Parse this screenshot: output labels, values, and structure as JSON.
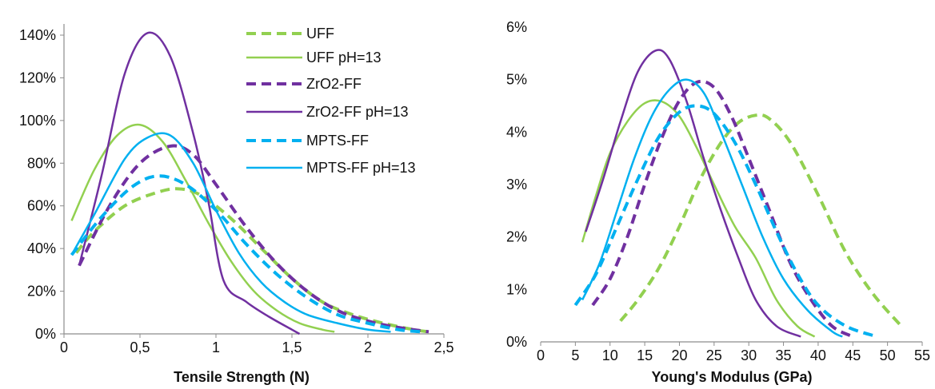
{
  "colors": {
    "green": "#92d050",
    "purple": "#7030a0",
    "blue": "#00b0f0",
    "axis": "#8c8c8c"
  },
  "chart_data": [
    {
      "type": "line",
      "xlabel": "Tensile Strength (N)",
      "ylabel": "",
      "xlim": [
        0,
        2.5
      ],
      "ylim": [
        0,
        1.4
      ],
      "x_ticks": [
        "0",
        "0,5",
        "1",
        "1,5",
        "2",
        "2,5"
      ],
      "y_ticks": [
        "0%",
        "20%",
        "40%",
        "60%",
        "80%",
        "100%",
        "120%",
        "140%"
      ],
      "grid": false,
      "legend_position": "top-right",
      "series": [
        {
          "name": "UFF",
          "color": "green",
          "dashed": true,
          "points": [
            [
              0.08,
              0.38
            ],
            [
              0.2,
              0.48
            ],
            [
              0.4,
              0.6
            ],
            [
              0.6,
              0.66
            ],
            [
              0.75,
              0.68
            ],
            [
              0.9,
              0.65
            ],
            [
              1.1,
              0.54
            ],
            [
              1.3,
              0.4
            ],
            [
              1.5,
              0.26
            ],
            [
              1.7,
              0.15
            ],
            [
              1.9,
              0.09
            ],
            [
              2.1,
              0.05
            ],
            [
              2.3,
              0.02
            ],
            [
              2.4,
              0.01
            ]
          ]
        },
        {
          "name": "UFF pH=13",
          "color": "green",
          "dashed": false,
          "points": [
            [
              0.05,
              0.53
            ],
            [
              0.2,
              0.77
            ],
            [
              0.35,
              0.93
            ],
            [
              0.5,
              0.98
            ],
            [
              0.65,
              0.9
            ],
            [
              0.8,
              0.72
            ],
            [
              0.95,
              0.52
            ],
            [
              1.1,
              0.34
            ],
            [
              1.25,
              0.2
            ],
            [
              1.4,
              0.11
            ],
            [
              1.55,
              0.05
            ],
            [
              1.7,
              0.02
            ],
            [
              1.78,
              0.01
            ]
          ]
        },
        {
          "name": "ZrO2-FF",
          "color": "purple",
          "dashed": true,
          "points": [
            [
              0.1,
              0.32
            ],
            [
              0.3,
              0.6
            ],
            [
              0.5,
              0.8
            ],
            [
              0.7,
              0.88
            ],
            [
              0.85,
              0.84
            ],
            [
              1.0,
              0.7
            ],
            [
              1.2,
              0.5
            ],
            [
              1.4,
              0.33
            ],
            [
              1.6,
              0.2
            ],
            [
              1.8,
              0.11
            ],
            [
              2.0,
              0.06
            ],
            [
              2.2,
              0.03
            ],
            [
              2.4,
              0.01
            ]
          ]
        },
        {
          "name": "ZrO2-FF pH=13",
          "color": "purple",
          "dashed": false,
          "points": [
            [
              0.1,
              0.32
            ],
            [
              0.25,
              0.75
            ],
            [
              0.4,
              1.22
            ],
            [
              0.55,
              1.41
            ],
            [
              0.7,
              1.3
            ],
            [
              0.85,
              0.94
            ],
            [
              0.95,
              0.62
            ],
            [
              1.05,
              0.25
            ],
            [
              1.2,
              0.15
            ],
            [
              1.35,
              0.08
            ],
            [
              1.5,
              0.02
            ],
            [
              1.55,
              0.0
            ]
          ]
        },
        {
          "name": "MPTS-FF",
          "color": "blue",
          "dashed": true,
          "points": [
            [
              0.05,
              0.37
            ],
            [
              0.25,
              0.55
            ],
            [
              0.45,
              0.69
            ],
            [
              0.62,
              0.74
            ],
            [
              0.8,
              0.7
            ],
            [
              1.0,
              0.58
            ],
            [
              1.2,
              0.42
            ],
            [
              1.4,
              0.28
            ],
            [
              1.6,
              0.17
            ],
            [
              1.8,
              0.09
            ],
            [
              2.0,
              0.05
            ],
            [
              2.2,
              0.02
            ],
            [
              2.35,
              0.01
            ]
          ]
        },
        {
          "name": "MPTS-FF pH=13",
          "color": "blue",
          "dashed": false,
          "points": [
            [
              0.05,
              0.37
            ],
            [
              0.2,
              0.56
            ],
            [
              0.4,
              0.82
            ],
            [
              0.55,
              0.92
            ],
            [
              0.7,
              0.93
            ],
            [
              0.85,
              0.8
            ],
            [
              1.0,
              0.58
            ],
            [
              1.15,
              0.38
            ],
            [
              1.3,
              0.24
            ],
            [
              1.45,
              0.15
            ],
            [
              1.6,
              0.09
            ],
            [
              1.8,
              0.05
            ],
            [
              2.0,
              0.02
            ],
            [
              2.15,
              0.01
            ]
          ]
        }
      ]
    },
    {
      "type": "line",
      "xlabel": "Young's Modulus (GPa)",
      "ylabel": "",
      "xlim": [
        0,
        55
      ],
      "ylim": [
        0,
        0.06
      ],
      "x_ticks": [
        "0",
        "5",
        "10",
        "15",
        "20",
        "25",
        "30",
        "35",
        "40",
        "45",
        "50",
        "55"
      ],
      "y_ticks": [
        "0%",
        "1%",
        "2%",
        "3%",
        "4%",
        "5%",
        "6%"
      ],
      "grid": false,
      "legend_position": "none",
      "series": [
        {
          "name": "UFF",
          "color": "green",
          "dashed": true,
          "points": [
            [
              11.5,
              0.004
            ],
            [
              14,
              0.008
            ],
            [
              17,
              0.014
            ],
            [
              20,
              0.022
            ],
            [
              23,
              0.031
            ],
            [
              26,
              0.038
            ],
            [
              28.5,
              0.0418
            ],
            [
              31,
              0.0432
            ],
            [
              33,
              0.0425
            ],
            [
              36,
              0.038
            ],
            [
              40,
              0.028
            ],
            [
              44,
              0.017
            ],
            [
              48,
              0.009
            ],
            [
              52,
              0.003
            ]
          ]
        },
        {
          "name": "UFF pH=13",
          "color": "green",
          "dashed": false,
          "points": [
            [
              6,
              0.019
            ],
            [
              8,
              0.028
            ],
            [
              10,
              0.036
            ],
            [
              12.5,
              0.042
            ],
            [
              15,
              0.0455
            ],
            [
              17.5,
              0.0458
            ],
            [
              20,
              0.043
            ],
            [
              22.5,
              0.037
            ],
            [
              25,
              0.03
            ],
            [
              28,
              0.022
            ],
            [
              31,
              0.016
            ],
            [
              34,
              0.008
            ],
            [
              37,
              0.003
            ],
            [
              39.5,
              0.001
            ]
          ]
        },
        {
          "name": "ZrO2-FF",
          "color": "purple",
          "dashed": true,
          "points": [
            [
              7.5,
              0.007
            ],
            [
              10,
              0.012
            ],
            [
              12.5,
              0.02
            ],
            [
              15,
              0.03
            ],
            [
              17.5,
              0.039
            ],
            [
              20,
              0.046
            ],
            [
              22.5,
              0.0495
            ],
            [
              25,
              0.0485
            ],
            [
              27.5,
              0.043
            ],
            [
              30,
              0.035
            ],
            [
              33,
              0.025
            ],
            [
              36,
              0.015
            ],
            [
              39,
              0.008
            ],
            [
              42,
              0.003
            ],
            [
              45,
              0.001
            ]
          ]
        },
        {
          "name": "ZrO2-FF pH=13",
          "color": "purple",
          "dashed": false,
          "points": [
            [
              6.5,
              0.021
            ],
            [
              9,
              0.031
            ],
            [
              11.5,
              0.042
            ],
            [
              14,
              0.0515
            ],
            [
              16.5,
              0.0555
            ],
            [
              18.5,
              0.054
            ],
            [
              21,
              0.046
            ],
            [
              23.5,
              0.035
            ],
            [
              26,
              0.025
            ],
            [
              28.5,
              0.016
            ],
            [
              31,
              0.008
            ],
            [
              34,
              0.003
            ],
            [
              37.5,
              0.001
            ]
          ]
        },
        {
          "name": "MPTS-FF",
          "color": "blue",
          "dashed": true,
          "points": [
            [
              5,
              0.007
            ],
            [
              8,
              0.013
            ],
            [
              11,
              0.022
            ],
            [
              14,
              0.031
            ],
            [
              17,
              0.039
            ],
            [
              20,
              0.0438
            ],
            [
              22.5,
              0.045
            ],
            [
              25,
              0.0435
            ],
            [
              28,
              0.038
            ],
            [
              31,
              0.03
            ],
            [
              34,
              0.021
            ],
            [
              37,
              0.013
            ],
            [
              40,
              0.007
            ],
            [
              44,
              0.003
            ],
            [
              48.5,
              0.001
            ]
          ]
        },
        {
          "name": "MPTS-FF pH=13",
          "color": "blue",
          "dashed": false,
          "points": [
            [
              6,
              0.008
            ],
            [
              8.5,
              0.015
            ],
            [
              11,
              0.025
            ],
            [
              13.5,
              0.035
            ],
            [
              16,
              0.043
            ],
            [
              18.5,
              0.048
            ],
            [
              21,
              0.05
            ],
            [
              23.5,
              0.0475
            ],
            [
              26,
              0.04
            ],
            [
              29,
              0.03
            ],
            [
              32,
              0.02
            ],
            [
              35,
              0.012
            ],
            [
              38.5,
              0.006
            ],
            [
              42,
              0.002
            ],
            [
              43.5,
              0.001
            ]
          ]
        }
      ]
    }
  ]
}
